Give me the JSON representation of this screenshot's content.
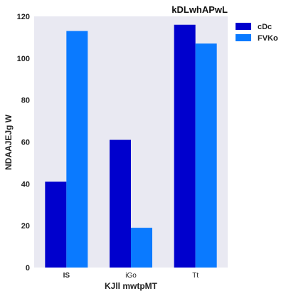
{
  "chart_data": {
    "type": "bar",
    "title": "kDLwhAPwL",
    "xlabel": "KJll mwtpMT",
    "ylabel": "NDAAJEJg W",
    "categories": [
      "IS",
      "iGo",
      "Tt"
    ],
    "category_bold": [
      true,
      false,
      false
    ],
    "series": [
      {
        "name": "cDc",
        "color": "#0000cd",
        "values": [
          41,
          61,
          116
        ]
      },
      {
        "name": "FVKo",
        "color": "#0a7aff",
        "values": [
          113,
          19,
          107
        ]
      }
    ],
    "ylim": [
      0,
      120
    ],
    "yticks": [
      0,
      20,
      40,
      60,
      80,
      100,
      120
    ],
    "grid": false,
    "background": "#e9e9f2",
    "legend_position": "right"
  }
}
